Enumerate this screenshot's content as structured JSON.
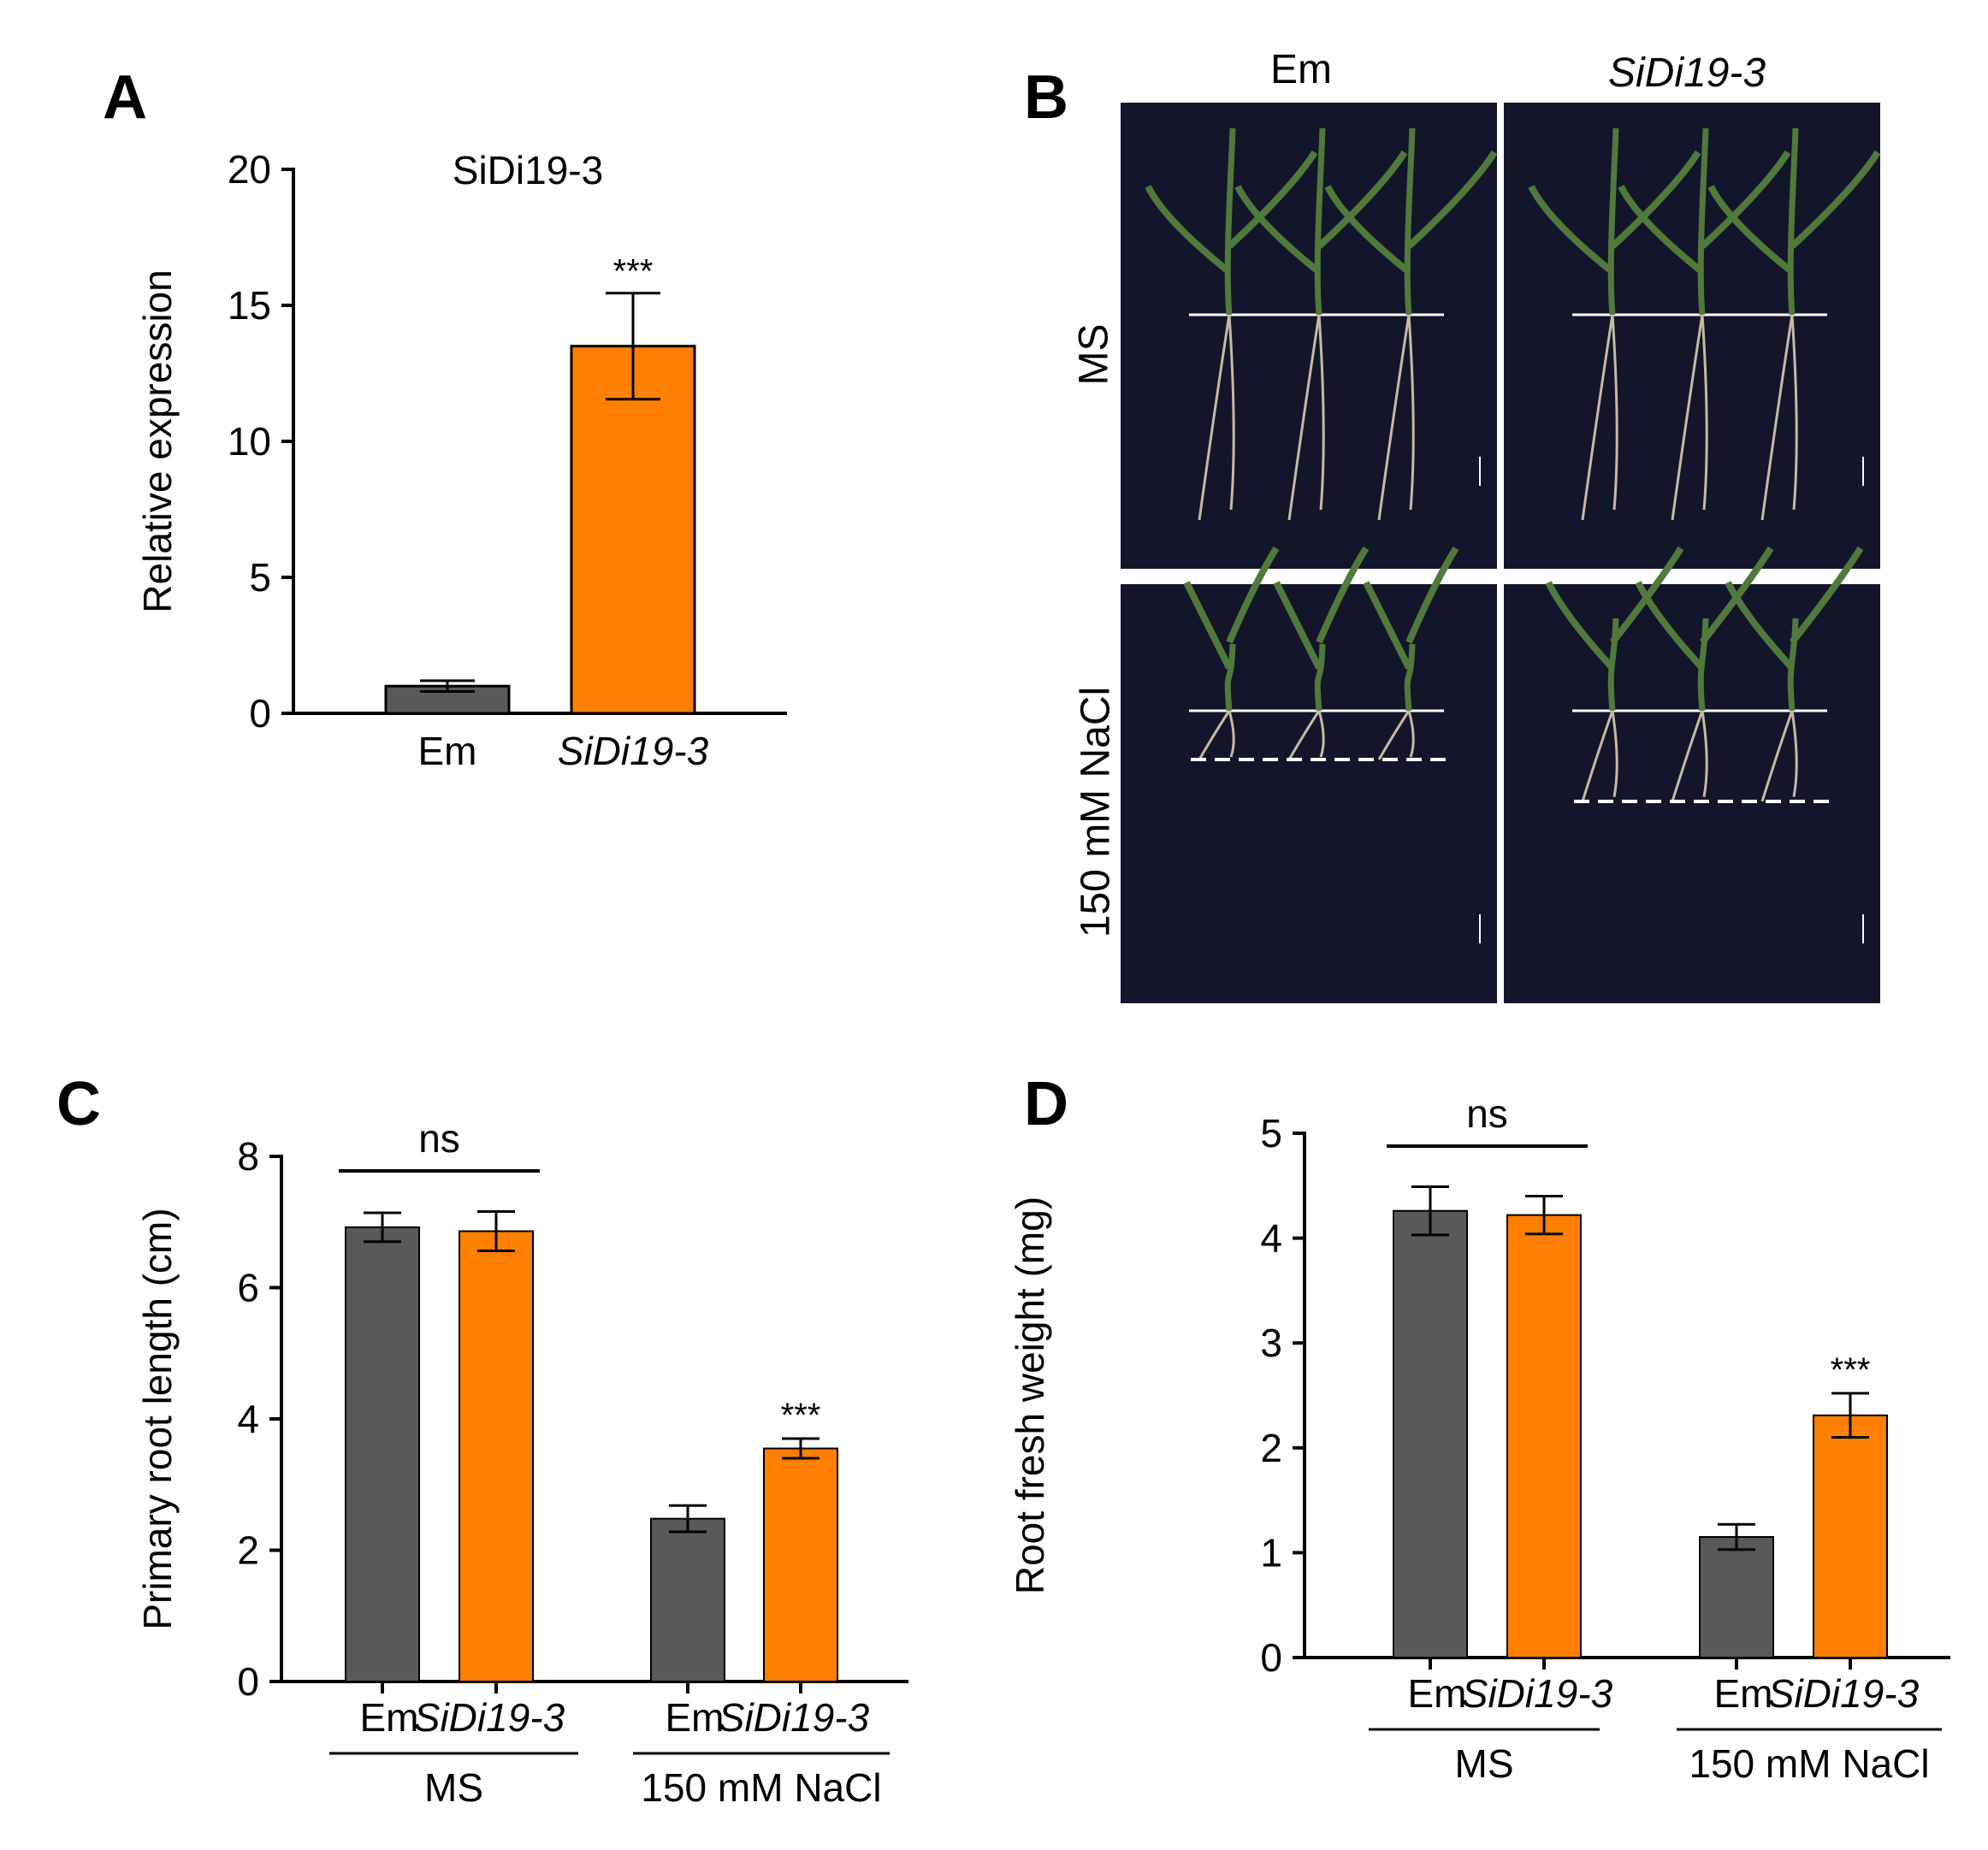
{
  "panels": {
    "a": "A",
    "b": "B",
    "c": "C",
    "d": "D"
  },
  "colors": {
    "em": "#595959",
    "sidi": "#ff7f00",
    "photo_bg": "#13152b",
    "leaf": "#4f7a3b",
    "root": "#c9b9a0"
  },
  "chart_data": [
    {
      "id": "A",
      "type": "bar",
      "title": "SiDi19-3",
      "ylabel": "Relative expression",
      "ylim": [
        0,
        20
      ],
      "yticks": [
        0,
        5,
        10,
        15,
        20
      ],
      "categories": [
        "Em",
        "SiDi19-3"
      ],
      "category_italic": [
        false,
        true
      ],
      "values": [
        1.0,
        13.5
      ],
      "errors": [
        0.2,
        1.95
      ],
      "annotations": [
        "",
        "***"
      ],
      "colors": [
        "#595959",
        "#ff7f00"
      ]
    },
    {
      "id": "C",
      "type": "bar",
      "ylabel": "Primary root length (cm)",
      "ylim": [
        0,
        8
      ],
      "yticks": [
        0,
        2,
        4,
        6,
        8
      ],
      "groups": [
        "MS",
        "150 mM NaCl"
      ],
      "categories": [
        "Em",
        "SiDi19-3"
      ],
      "category_italic": [
        false,
        true
      ],
      "series": [
        {
          "name": "Em",
          "values": [
            6.92,
            2.48
          ],
          "errors": [
            0.22,
            0.2
          ]
        },
        {
          "name": "SiDi19-3",
          "values": [
            6.86,
            3.55
          ],
          "errors": [
            0.3,
            0.15
          ]
        }
      ],
      "significance": [
        {
          "group": 0,
          "label": "ns"
        },
        {
          "group": 1,
          "label": "***"
        }
      ]
    },
    {
      "id": "D",
      "type": "bar",
      "ylabel": "Root fresh weight (mg)",
      "ylim": [
        0,
        5
      ],
      "yticks": [
        0,
        1,
        2,
        3,
        4,
        5
      ],
      "groups": [
        "MS",
        "150 mM NaCl"
      ],
      "categories": [
        "Em",
        "SiDi19-3"
      ],
      "category_italic": [
        false,
        true
      ],
      "series": [
        {
          "name": "Em",
          "values": [
            4.26,
            1.15
          ],
          "errors": [
            0.23,
            0.12
          ]
        },
        {
          "name": "SiDi19-3",
          "values": [
            4.22,
            2.31
          ],
          "errors": [
            0.18,
            0.21
          ]
        }
      ],
      "significance": [
        {
          "group": 0,
          "label": "ns"
        },
        {
          "group": 1,
          "label": "***"
        }
      ]
    }
  ],
  "photo": {
    "col_labels": [
      "Em",
      "SiDi19-3"
    ],
    "row_labels": [
      "MS",
      "150 mM NaCl"
    ]
  }
}
